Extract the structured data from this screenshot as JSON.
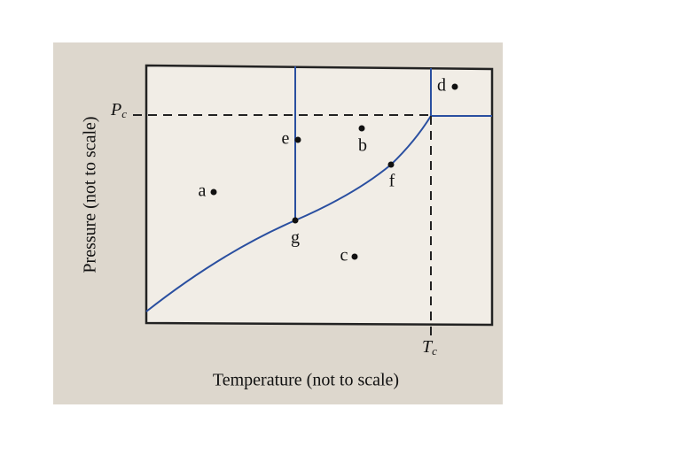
{
  "axes": {
    "x_label": "Temperature (not to scale)",
    "y_label": "Pressure (not to scale)",
    "p_critical": {
      "symbol": "P",
      "subscript": "c"
    },
    "t_critical": {
      "symbol": "T",
      "subscript": "c"
    }
  },
  "points": [
    {
      "label": "a"
    },
    {
      "label": "b"
    },
    {
      "label": "c"
    },
    {
      "label": "d"
    },
    {
      "label": "e"
    },
    {
      "label": "f"
    },
    {
      "label": "g"
    }
  ]
}
